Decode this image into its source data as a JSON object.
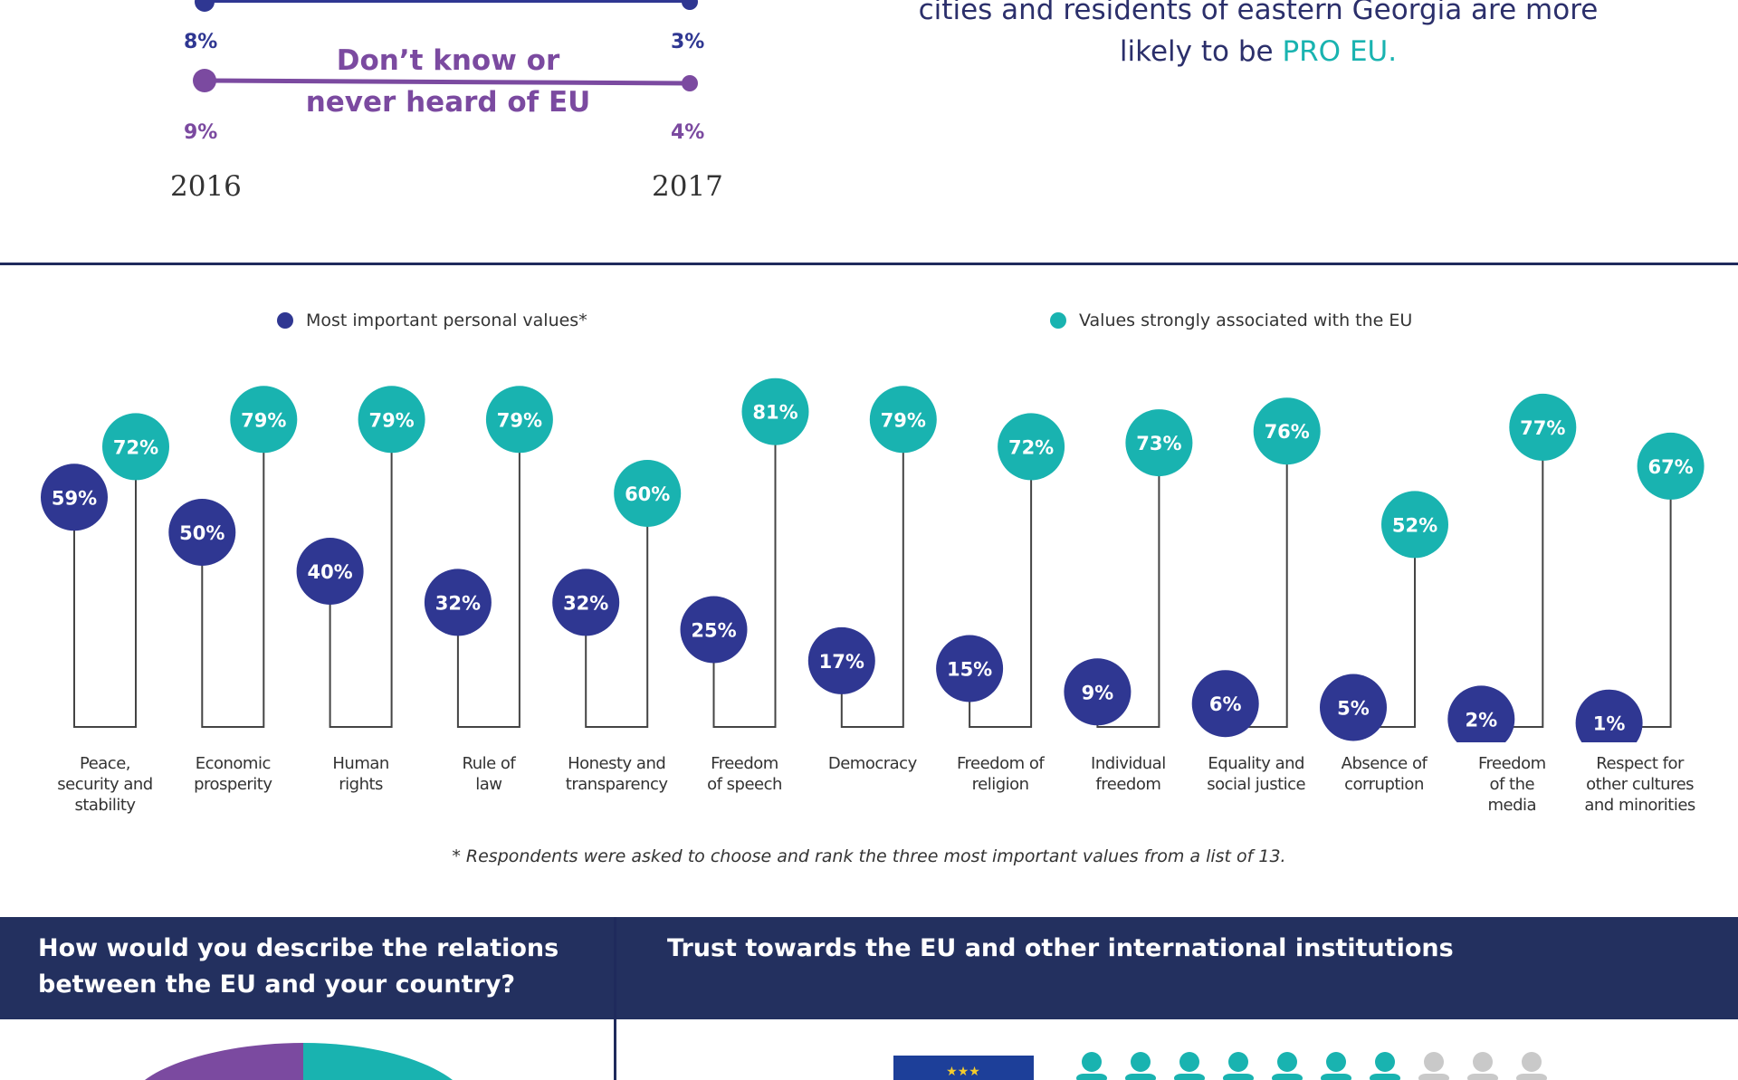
{
  "intro": {
    "line1": "cities and residents of eastern Georgia are more",
    "line2_prefix": "likely to be ",
    "line2_highlight": "PRO EU."
  },
  "trend": {
    "series": [
      {
        "name": "",
        "val_2016": "8%",
        "val_2017": "3%"
      },
      {
        "name": "Don’t know or never heard of EU",
        "val_2016": "9%",
        "val_2017": "4%"
      }
    ],
    "dk_label_line1": "Don’t know or",
    "dk_label_line2": "never heard of EU",
    "year_start": "2016",
    "year_end": "2017"
  },
  "legend": {
    "personal": "Most important personal values*",
    "eu": "Values strongly associated with the EU"
  },
  "chart_data": {
    "type": "scatter",
    "categories": [
      "Peace, security and stability",
      "Economic prosperity",
      "Human rights",
      "Rule of law",
      "Honesty and transparency",
      "Freedom of speech",
      "Democracy",
      "Freedom of religion",
      "Individual freedom",
      "Equality and social justice",
      "Absence of corruption",
      "Freedom of the media",
      "Respect for other cultures and minorities"
    ],
    "category_lines": [
      [
        "Peace,",
        "security and",
        "stability"
      ],
      [
        "Economic",
        "prosperity"
      ],
      [
        "Human",
        "rights"
      ],
      [
        "Rule of",
        "law"
      ],
      [
        "Honesty and",
        "transparency"
      ],
      [
        "Freedom",
        "of speech"
      ],
      [
        "Democracy"
      ],
      [
        "Freedom of",
        "religion"
      ],
      [
        "Individual",
        "freedom"
      ],
      [
        "Equality and",
        "social justice"
      ],
      [
        "Absence of",
        "corruption"
      ],
      [
        "Freedom",
        "of the",
        "media"
      ],
      [
        "Respect for",
        "other cultures",
        "and minorities"
      ]
    ],
    "series": [
      {
        "name": "Most important personal values*",
        "values": [
          59,
          50,
          40,
          32,
          32,
          25,
          17,
          15,
          9,
          6,
          5,
          2,
          1
        ],
        "color": "#2f3792"
      },
      {
        "name": "Values strongly associated with the EU",
        "values": [
          72,
          79,
          79,
          79,
          60,
          81,
          79,
          72,
          73,
          76,
          52,
          77,
          67
        ],
        "color": "#19b3b0"
      }
    ],
    "ylim": [
      0,
      100
    ],
    "grid": false,
    "legend_position": "top"
  },
  "footnote": "* Respondents were asked to choose and rank the three most important values from a list of 13.",
  "banners": {
    "left": "How would you describe the relations between the EU and your country?",
    "right": "Trust towards the EU and other international institutions"
  },
  "colors": {
    "navy": "#2f3792",
    "teal": "#19b3b0",
    "purple": "#7b4aa0",
    "banner": "#23305f",
    "grey_figure": "#c9c9c9",
    "eu_blue": "#1d3f99",
    "eu_star": "#f5cc2b"
  }
}
